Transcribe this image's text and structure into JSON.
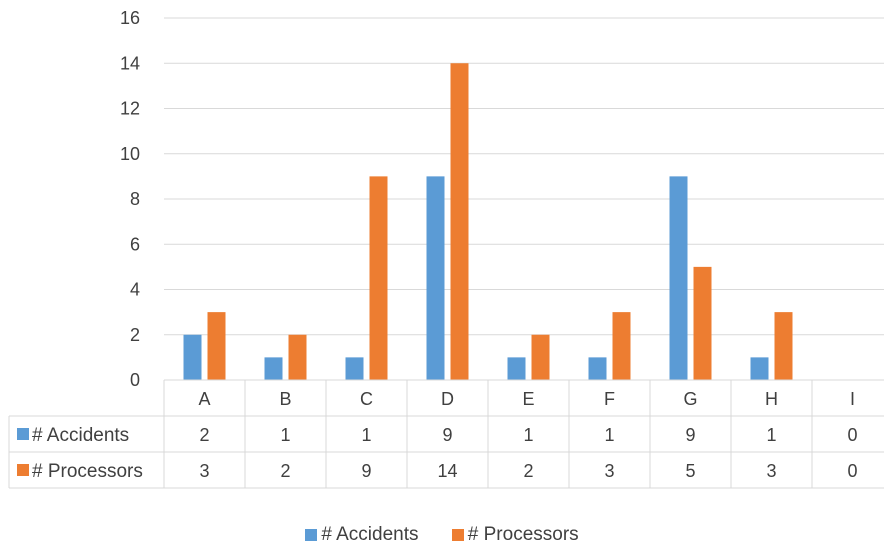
{
  "chart_data": {
    "type": "bar",
    "title": "",
    "xlabel": "",
    "ylabel": "",
    "categories": [
      "A",
      "B",
      "C",
      "D",
      "E",
      "F",
      "G",
      "H",
      "I"
    ],
    "series": [
      {
        "name": "# Accidents",
        "color": "#5B9BD5",
        "values": [
          2,
          1,
          1,
          9,
          1,
          1,
          9,
          1,
          0
        ]
      },
      {
        "name": "# Processors",
        "color": "#ED7D31",
        "values": [
          3,
          2,
          9,
          14,
          2,
          3,
          5,
          3,
          0
        ]
      }
    ],
    "ylim": [
      0,
      16
    ],
    "yticks": [
      0,
      2,
      4,
      6,
      8,
      10,
      12,
      14,
      16
    ],
    "grid": true,
    "legend": "bottom",
    "data_table": true
  }
}
